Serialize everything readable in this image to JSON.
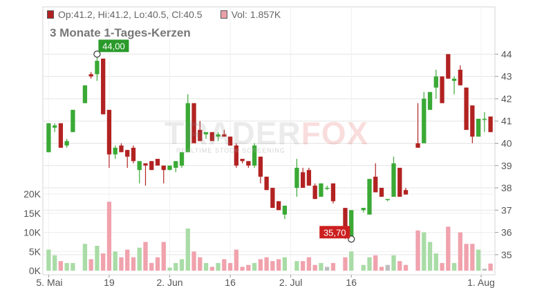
{
  "legend": {
    "ohlc_label": "Op:41.2, Hi:41.2, Lo:40.5, Cl:40.5",
    "vol_label": "Vol: 1.857K",
    "price_color": "#b22222",
    "vol_color": "#e9a0a9"
  },
  "title": "3 Monate 1-Tages-Kerzen",
  "watermark": {
    "part1": "TRADER",
    "part2": "FOX",
    "sub": "REALTIME STOCK SCREENING"
  },
  "colors": {
    "up": "#3aa935",
    "down": "#b22222",
    "vol_up": "#a9dca6",
    "vol_down": "#f0a2ad",
    "vol_neutral": "#bdbdbd",
    "grid": "#e4e4e4"
  },
  "chart_data": {
    "type": "candlestick",
    "x_ticks": [
      "5. Mai",
      "19",
      "2. Jun",
      "16",
      "2. Jul",
      "16",
      "1. Aug"
    ],
    "price_ticks": [
      35,
      36,
      37,
      38,
      39,
      40,
      41,
      42,
      43,
      44
    ],
    "volume_ticks": [
      "0K",
      "5K",
      "10K",
      "15K",
      "20K"
    ],
    "price_range": [
      34.5,
      45.5
    ],
    "volume_range": [
      0,
      22
    ],
    "annotations": [
      {
        "label": "44,00",
        "value": 44.0,
        "color": "#2a9a2a",
        "index": 8
      },
      {
        "label": "35,70",
        "value": 35.7,
        "color": "#cc1f1f",
        "index": 50
      }
    ],
    "candles": [
      {
        "o": 39.6,
        "h": 40.9,
        "l": 39.6,
        "c": 40.9,
        "v": 5.5
      },
      {
        "o": 40.7,
        "h": 40.9,
        "l": 40.5,
        "c": 40.8,
        "v": 4.0
      },
      {
        "o": 40.9,
        "h": 40.9,
        "l": 39.8,
        "c": 39.8,
        "v": 2.5
      },
      {
        "o": 39.9,
        "h": 40.2,
        "l": 39.8,
        "c": 40.1,
        "v": 2.0
      },
      {
        "o": 40.5,
        "h": 41.5,
        "l": 40.5,
        "c": 41.5,
        "v": 2.0
      },
      {
        "o": null,
        "h": null,
        "l": null,
        "c": null,
        "v": null
      },
      {
        "o": 41.8,
        "h": 42.6,
        "l": 41.8,
        "c": 42.6,
        "v": 7.0
      },
      {
        "o": 43.1,
        "h": 43.2,
        "l": 42.9,
        "c": 43.0,
        "v": 3.0
      },
      {
        "o": 43.1,
        "h": 44.0,
        "l": 42.8,
        "c": 43.7,
        "v": 6.5
      },
      {
        "o": 43.8,
        "h": 43.8,
        "l": 41.3,
        "c": 41.3,
        "v": 4.5
      },
      {
        "o": 41.5,
        "h": 41.5,
        "l": 38.9,
        "c": 39.5,
        "v": 18.0
      },
      {
        "o": 39.5,
        "h": 39.9,
        "l": 39.3,
        "c": 39.8,
        "v": 5.0
      },
      {
        "o": 39.9,
        "h": 40.0,
        "l": 39.6,
        "c": 39.6,
        "v": 3.5
      },
      {
        "o": 39.7,
        "h": 39.7,
        "l": 38.9,
        "c": 39.4,
        "v": 5.5
      },
      {
        "o": 39.8,
        "h": 39.9,
        "l": 39.1,
        "c": 39.2,
        "v": 3.5
      },
      {
        "o": 38.8,
        "h": 39.2,
        "l": 38.2,
        "c": 39.2,
        "v": 6.0
      },
      {
        "o": 39.1,
        "h": 39.1,
        "l": 38.1,
        "c": 39.0,
        "v": 7.5
      },
      {
        "o": 39.2,
        "h": 39.2,
        "l": 38.8,
        "c": 38.8,
        "v": 2.0
      },
      {
        "o": 39.3,
        "h": 39.3,
        "l": 39.0,
        "c": 39.0,
        "v": 3.5
      },
      {
        "o": 39.0,
        "h": 39.0,
        "l": 38.2,
        "c": 38.8,
        "v": 7.5
      },
      {
        "o": 38.8,
        "h": 39.0,
        "l": 38.8,
        "c": 39.0,
        "v": 0.8
      },
      {
        "o": 38.9,
        "h": 39.2,
        "l": 38.7,
        "c": 39.2,
        "v": 2.0
      },
      {
        "o": 39.0,
        "h": 39.6,
        "l": 38.9,
        "c": 39.6,
        "v": 3.0
      },
      {
        "o": 39.6,
        "h": 42.2,
        "l": 39.6,
        "c": 41.8,
        "v": 11.0
      },
      {
        "o": 41.8,
        "h": 41.8,
        "l": 40.0,
        "c": 40.0,
        "v": 5.0
      },
      {
        "o": 40.6,
        "h": 41.0,
        "l": 40.1,
        "c": 40.1,
        "v": 3.5
      },
      {
        "o": 40.4,
        "h": 40.5,
        "l": 40.2,
        "c": 40.5,
        "v": 2.0
      },
      {
        "o": 40.5,
        "h": 40.5,
        "l": 40.1,
        "c": 40.1,
        "v": 1.0
      },
      {
        "o": 40.3,
        "h": 40.5,
        "l": 40.1,
        "c": 40.4,
        "v": 2.0
      },
      {
        "o": 40.4,
        "h": 40.6,
        "l": 40.3,
        "c": 40.3,
        "v": 3.0
      },
      {
        "o": 40.3,
        "h": 40.3,
        "l": 39.9,
        "c": 39.9,
        "v": 2.0
      },
      {
        "o": 39.9,
        "h": 40.0,
        "l": 38.9,
        "c": 39.0,
        "v": 5.5
      },
      {
        "o": 39.3,
        "h": 39.3,
        "l": 39.1,
        "c": 39.2,
        "v": 1.0
      },
      {
        "o": 39.2,
        "h": 39.2,
        "l": 38.9,
        "c": 39.0,
        "v": 1.5
      },
      {
        "o": 39.0,
        "h": 40.0,
        "l": 38.9,
        "c": 39.9,
        "v": 2.0
      },
      {
        "o": 39.4,
        "h": 39.4,
        "l": 38.2,
        "c": 38.5,
        "v": 3.0
      },
      {
        "o": 38.5,
        "h": 38.5,
        "l": 37.9,
        "c": 37.9,
        "v": 3.5
      },
      {
        "o": 38.0,
        "h": 38.0,
        "l": 37.1,
        "c": 37.1,
        "v": 2.5
      },
      {
        "o": 37.4,
        "h": 37.4,
        "l": 37.0,
        "c": 37.0,
        "v": 3.0
      },
      {
        "o": 36.8,
        "h": 37.2,
        "l": 36.6,
        "c": 37.2,
        "v": 3.5
      },
      {
        "o": null,
        "h": null,
        "l": null,
        "c": null,
        "v": null
      },
      {
        "o": 38.0,
        "h": 39.3,
        "l": 37.6,
        "c": 38.9,
        "v": 2.5
      },
      {
        "o": 38.7,
        "h": 38.9,
        "l": 38.0,
        "c": 38.0,
        "v": 2.5
      },
      {
        "o": 38.8,
        "h": 38.9,
        "l": 38.1,
        "c": 38.1,
        "v": 3.5
      },
      {
        "o": 38.1,
        "h": 38.2,
        "l": 37.5,
        "c": 37.5,
        "v": 1.5
      },
      {
        "o": 37.6,
        "h": 38.2,
        "l": 37.6,
        "c": 38.2,
        "v": 2.0
      },
      {
        "o": 38.0,
        "h": 38.1,
        "l": 37.9,
        "c": 38.0,
        "v": 1.0
      },
      {
        "o": 38.2,
        "h": 38.2,
        "l": 37.3,
        "c": 37.4,
        "v": 2.0
      },
      {
        "o": null,
        "h": null,
        "l": null,
        "c": null,
        "v": null
      },
      {
        "o": 37.1,
        "h": 37.1,
        "l": 35.7,
        "c": 36.1,
        "v": 3.5
      },
      {
        "o": 35.8,
        "h": 37.0,
        "l": 35.8,
        "c": 37.0,
        "v": 5.0
      },
      {
        "o": null,
        "h": null,
        "l": null,
        "c": null,
        "v": null
      },
      {
        "o": 37.0,
        "h": 37.1,
        "l": 36.9,
        "c": 37.1,
        "v": 1.5
      },
      {
        "o": 36.8,
        "h": 38.4,
        "l": 36.8,
        "c": 38.4,
        "v": 3.5
      },
      {
        "o": 38.5,
        "h": 39.1,
        "l": 37.8,
        "c": 37.8,
        "v": 4.0
      },
      {
        "o": 38.0,
        "h": 38.0,
        "l": 37.6,
        "c": 37.6,
        "v": 1.0
      },
      {
        "o": 37.5,
        "h": 37.5,
        "l": 37.4,
        "c": 37.5,
        "v": 1.5
      },
      {
        "o": 37.6,
        "h": 39.4,
        "l": 37.6,
        "c": 39.1,
        "v": 4.0
      },
      {
        "o": 38.9,
        "h": 38.9,
        "l": 37.6,
        "c": 37.6,
        "v": 2.5
      },
      {
        "o": 37.9,
        "h": 38.0,
        "l": 37.7,
        "c": 37.7,
        "v": 1.5
      },
      {
        "o": null,
        "h": null,
        "l": null,
        "c": null,
        "v": null
      },
      {
        "o": 40.0,
        "h": 41.8,
        "l": 39.8,
        "c": 39.8,
        "v": 10.5
      },
      {
        "o": 40.0,
        "h": 42.3,
        "l": 40.0,
        "c": 42.0,
        "v": 10.0
      },
      {
        "o": 41.5,
        "h": 42.3,
        "l": 41.5,
        "c": 42.3,
        "v": 7.5
      },
      {
        "o": 42.5,
        "h": 43.3,
        "l": 42.0,
        "c": 43.0,
        "v": 4.5
      },
      {
        "o": 43.0,
        "h": 43.0,
        "l": 41.8,
        "c": 41.8,
        "v": 2.0
      },
      {
        "o": 44.0,
        "h": 44.0,
        "l": 42.9,
        "c": 42.9,
        "v": 11.5
      },
      {
        "o": 42.8,
        "h": 43.0,
        "l": 42.2,
        "c": 42.9,
        "v": 2.0
      },
      {
        "o": 43.3,
        "h": 43.5,
        "l": 42.6,
        "c": 42.6,
        "v": 10.0
      },
      {
        "o": 42.5,
        "h": 42.5,
        "l": 40.6,
        "c": 40.6,
        "v": 7.0
      },
      {
        "o": 41.7,
        "h": 41.7,
        "l": 40.0,
        "c": 40.3,
        "v": 7.0
      },
      {
        "o": 40.3,
        "h": 41.1,
        "l": 40.3,
        "c": 41.1,
        "v": 5.5
      },
      {
        "o": 41.1,
        "h": 41.4,
        "l": 40.5,
        "c": 41.1,
        "v": 0.5
      },
      {
        "o": 41.2,
        "h": 41.2,
        "l": 40.5,
        "c": 40.5,
        "v": 1.857
      }
    ]
  }
}
